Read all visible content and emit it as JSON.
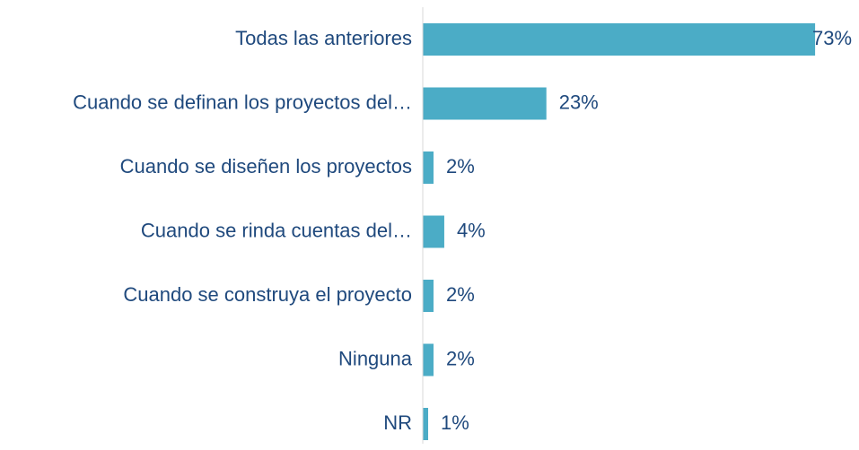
{
  "chart_data": {
    "type": "bar",
    "orientation": "horizontal",
    "categories": [
      "Todas las anteriores",
      "Cuando se definan los proyectos del…",
      "Cuando se diseñen los proyectos",
      "Cuando se rinda cuentas del…",
      "Cuando se construya el proyecto",
      "Ninguna",
      "NR"
    ],
    "values": [
      73,
      23,
      2,
      4,
      2,
      2,
      1
    ],
    "value_labels": [
      "73%",
      "23%",
      "2%",
      "4%",
      "2%",
      "2%",
      "1%"
    ],
    "color": "#4bacc6",
    "xlim": [
      0,
      80
    ]
  }
}
